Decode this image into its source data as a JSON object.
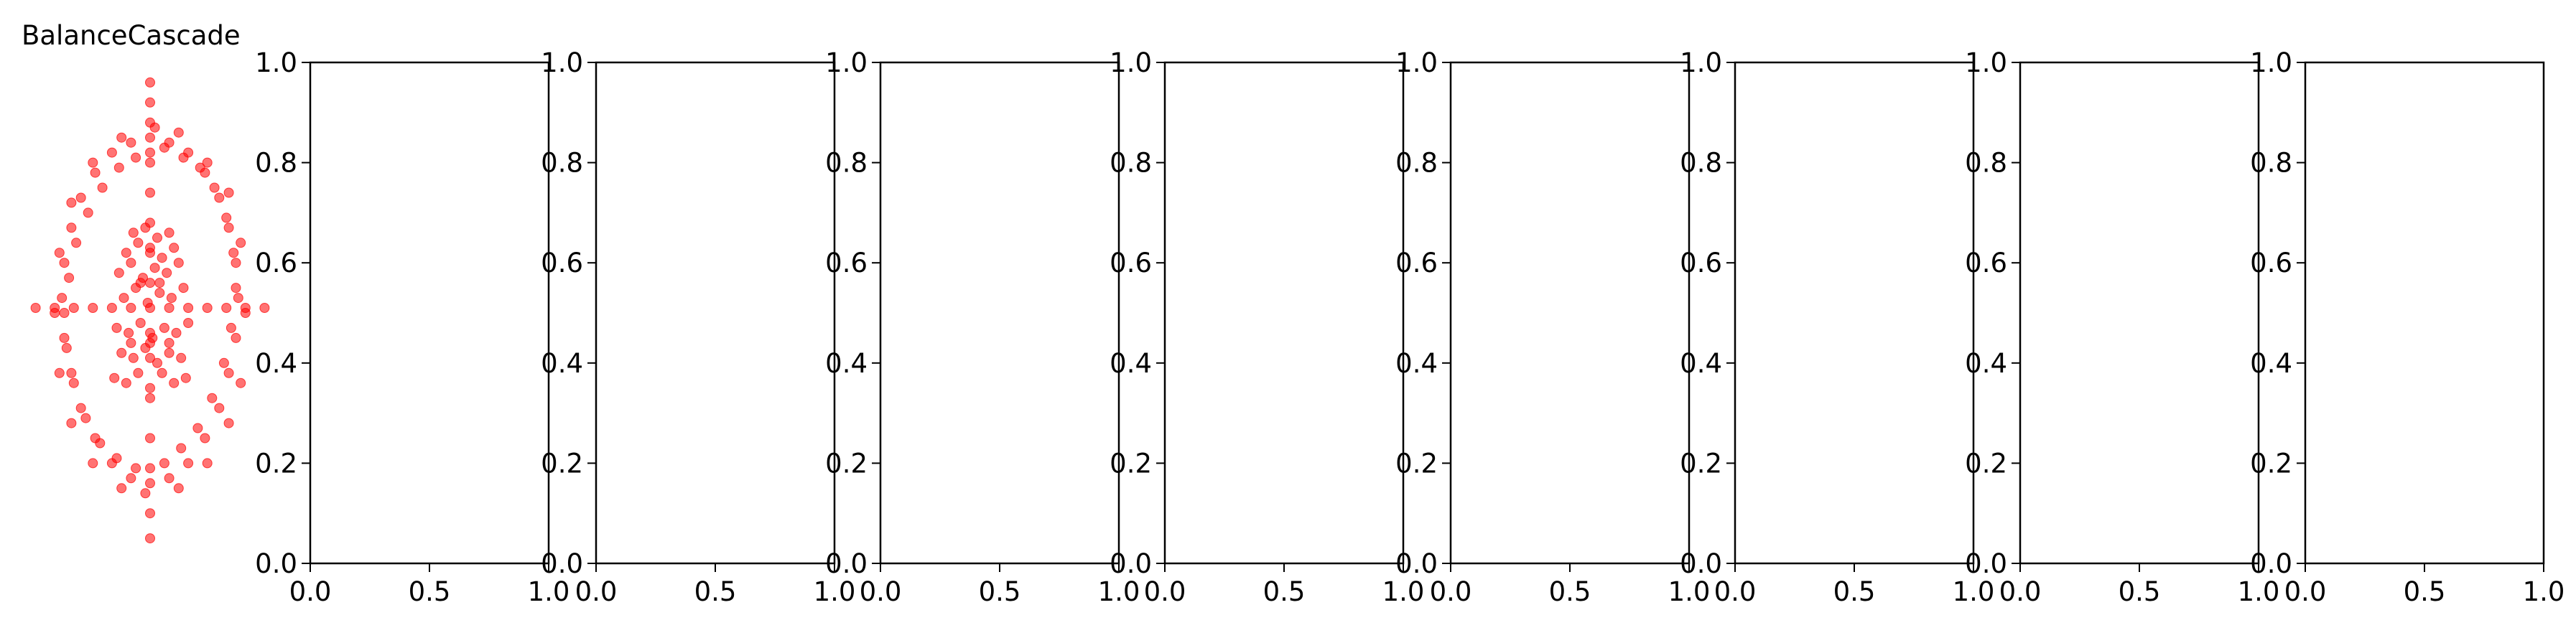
{
  "chart_data": [
    {
      "type": "scatter",
      "title": "BalanceCascade",
      "axes_visible": false,
      "color": "#ff0000",
      "marker": "circle",
      "alpha": 0.55,
      "xlim": [
        0.0,
        1.0
      ],
      "ylim": [
        0.0,
        1.0
      ],
      "notes_shape": "outer ellipse ring, inner filled cluster, horizontal line at y≈0.51, vertical line at x≈0.5",
      "points": {
        "x": [
          0.5,
          0.58,
          0.66,
          0.73,
          0.79,
          0.83,
          0.86,
          0.87,
          0.86,
          0.83,
          0.79,
          0.73,
          0.66,
          0.58,
          0.5,
          0.42,
          0.34,
          0.27,
          0.21,
          0.17,
          0.14,
          0.13,
          0.14,
          0.17,
          0.21,
          0.27,
          0.34,
          0.42,
          0.5,
          0.56,
          0.63,
          0.7,
          0.76,
          0.81,
          0.84,
          0.86,
          0.85,
          0.82,
          0.77,
          0.71,
          0.64,
          0.56,
          0.5,
          0.44,
          0.37,
          0.3,
          0.24,
          0.19,
          0.16,
          0.14,
          0.15,
          0.18,
          0.23,
          0.29,
          0.36,
          0.44,
          0.48,
          0.62,
          0.74,
          0.83,
          0.88,
          0.9,
          0.88,
          0.83,
          0.74,
          0.62,
          0.52,
          0.38,
          0.26,
          0.17,
          0.12,
          0.1,
          0.12,
          0.17,
          0.26,
          0.38,
          0.5,
          0.5,
          0.5,
          0.5,
          0.5,
          0.5,
          0.5,
          0.5,
          0.5,
          0.5,
          0.5,
          0.5,
          0.5,
          0.5,
          0.5,
          0.02,
          0.1,
          0.18,
          0.26,
          0.34,
          0.42,
          0.58,
          0.66,
          0.74,
          0.82,
          0.9,
          0.98,
          0.35,
          0.4,
          0.45,
          0.5,
          0.55,
          0.6,
          0.65,
          0.38,
          0.43,
          0.48,
          0.53,
          0.58,
          0.63,
          0.36,
          0.41,
          0.46,
          0.51,
          0.56,
          0.61,
          0.66,
          0.39,
          0.44,
          0.49,
          0.54,
          0.59,
          0.64,
          0.37,
          0.42,
          0.47,
          0.52,
          0.57,
          0.62,
          0.4,
          0.45,
          0.5,
          0.55,
          0.6,
          0.43,
          0.48,
          0.53,
          0.58,
          0.42,
          0.5,
          0.58,
          0.46,
          0.54
        ],
        "y": [
          0.16,
          0.17,
          0.2,
          0.25,
          0.31,
          0.38,
          0.45,
          0.53,
          0.6,
          0.67,
          0.73,
          0.78,
          0.82,
          0.84,
          0.85,
          0.84,
          0.82,
          0.78,
          0.73,
          0.67,
          0.6,
          0.53,
          0.45,
          0.38,
          0.31,
          0.25,
          0.2,
          0.17,
          0.19,
          0.2,
          0.23,
          0.27,
          0.33,
          0.4,
          0.47,
          0.55,
          0.62,
          0.69,
          0.75,
          0.79,
          0.81,
          0.83,
          0.82,
          0.81,
          0.79,
          0.75,
          0.7,
          0.64,
          0.57,
          0.5,
          0.43,
          0.36,
          0.29,
          0.24,
          0.21,
          0.19,
          0.14,
          0.15,
          0.2,
          0.28,
          0.36,
          0.5,
          0.64,
          0.74,
          0.8,
          0.86,
          0.87,
          0.85,
          0.8,
          0.72,
          0.62,
          0.5,
          0.38,
          0.28,
          0.2,
          0.15,
          0.05,
          0.1,
          0.25,
          0.33,
          0.41,
          0.46,
          0.51,
          0.56,
          0.62,
          0.68,
          0.74,
          0.8,
          0.88,
          0.92,
          0.96,
          0.51,
          0.51,
          0.51,
          0.51,
          0.51,
          0.51,
          0.51,
          0.51,
          0.51,
          0.51,
          0.51,
          0.51,
          0.37,
          0.36,
          0.38,
          0.35,
          0.38,
          0.36,
          0.37,
          0.42,
          0.41,
          0.43,
          0.4,
          0.42,
          0.41,
          0.47,
          0.46,
          0.48,
          0.45,
          0.47,
          0.46,
          0.48,
          0.53,
          0.55,
          0.52,
          0.54,
          0.53,
          0.55,
          0.58,
          0.6,
          0.57,
          0.59,
          0.58,
          0.6,
          0.62,
          0.64,
          0.63,
          0.61,
          0.63,
          0.66,
          0.67,
          0.65,
          0.66,
          0.44,
          0.44,
          0.44,
          0.56,
          0.56
        ]
      }
    },
    {
      "type": "scatter",
      "xlim": [
        0.0,
        1.0
      ],
      "ylim": [
        0.0,
        1.0
      ],
      "xticks": [
        "0.0",
        "0.5",
        "1.0"
      ],
      "yticks": [
        "0.0",
        "0.2",
        "0.4",
        "0.6",
        "0.8",
        "1.0"
      ],
      "points": {
        "x": [],
        "y": []
      }
    },
    {
      "type": "scatter",
      "xlim": [
        0.0,
        1.0
      ],
      "ylim": [
        0.0,
        1.0
      ],
      "xticks": [
        "0.0",
        "0.5",
        "1.0"
      ],
      "yticks": [
        "0.0",
        "0.2",
        "0.4",
        "0.6",
        "0.8",
        "1.0"
      ],
      "points": {
        "x": [],
        "y": []
      }
    },
    {
      "type": "scatter",
      "xlim": [
        0.0,
        1.0
      ],
      "ylim": [
        0.0,
        1.0
      ],
      "xticks": [
        "0.0",
        "0.5",
        "1.0"
      ],
      "yticks": [
        "0.0",
        "0.2",
        "0.4",
        "0.6",
        "0.8",
        "1.0"
      ],
      "points": {
        "x": [],
        "y": []
      }
    },
    {
      "type": "scatter",
      "xlim": [
        0.0,
        1.0
      ],
      "ylim": [
        0.0,
        1.0
      ],
      "xticks": [
        "0.0",
        "0.5",
        "1.0"
      ],
      "yticks": [
        "0.0",
        "0.2",
        "0.4",
        "0.6",
        "0.8",
        "1.0"
      ],
      "points": {
        "x": [],
        "y": []
      }
    },
    {
      "type": "scatter",
      "xlim": [
        0.0,
        1.0
      ],
      "ylim": [
        0.0,
        1.0
      ],
      "xticks": [
        "0.0",
        "0.5",
        "1.0"
      ],
      "yticks": [
        "0.0",
        "0.2",
        "0.4",
        "0.6",
        "0.8",
        "1.0"
      ],
      "points": {
        "x": [],
        "y": []
      }
    },
    {
      "type": "scatter",
      "xlim": [
        0.0,
        1.0
      ],
      "ylim": [
        0.0,
        1.0
      ],
      "xticks": [
        "0.0",
        "0.5",
        "1.0"
      ],
      "yticks": [
        "0.0",
        "0.2",
        "0.4",
        "0.6",
        "0.8",
        "1.0"
      ],
      "points": {
        "x": [],
        "y": []
      }
    },
    {
      "type": "scatter",
      "xlim": [
        0.0,
        1.0
      ],
      "ylim": [
        0.0,
        1.0
      ],
      "xticks": [
        "0.0",
        "0.5",
        "1.0"
      ],
      "yticks": [
        "0.0",
        "0.2",
        "0.4",
        "0.6",
        "0.8",
        "1.0"
      ],
      "points": {
        "x": [],
        "y": []
      }
    },
    {
      "type": "scatter",
      "xlim": [
        0.0,
        1.0
      ],
      "ylim": [
        0.0,
        1.0
      ],
      "xticks": [
        "0.0",
        "0.5",
        "1.0"
      ],
      "yticks": [
        "0.0",
        "0.2",
        "0.4",
        "0.6",
        "0.8",
        "1.0"
      ],
      "points": {
        "x": [],
        "y": []
      }
    }
  ]
}
